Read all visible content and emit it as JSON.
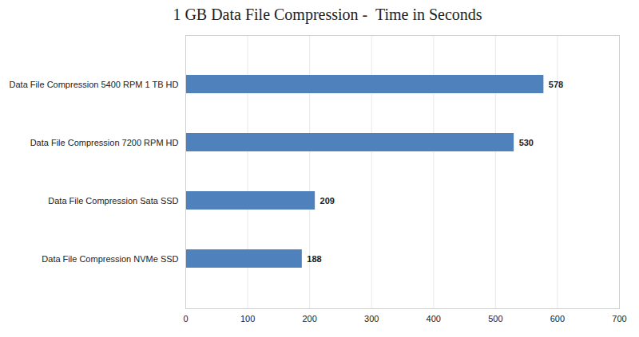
{
  "chart_data": {
    "type": "bar",
    "title": "1 GB Data File Compression -  Time in Seconds",
    "orientation": "horizontal",
    "categories": [
      "Data File Compression 5400 RPM 1 TB HD",
      "Data File Compression 7200 RPM HD",
      "Data File Compression Sata SSD",
      "Data File Compression NVMe SSD"
    ],
    "values": [
      578,
      530,
      209,
      188
    ],
    "color": "#4f81bd",
    "xlim": [
      0,
      700
    ],
    "xticks": [
      0,
      100,
      200,
      300,
      400,
      500,
      600,
      700
    ],
    "grid": true,
    "data_labels": true
  }
}
